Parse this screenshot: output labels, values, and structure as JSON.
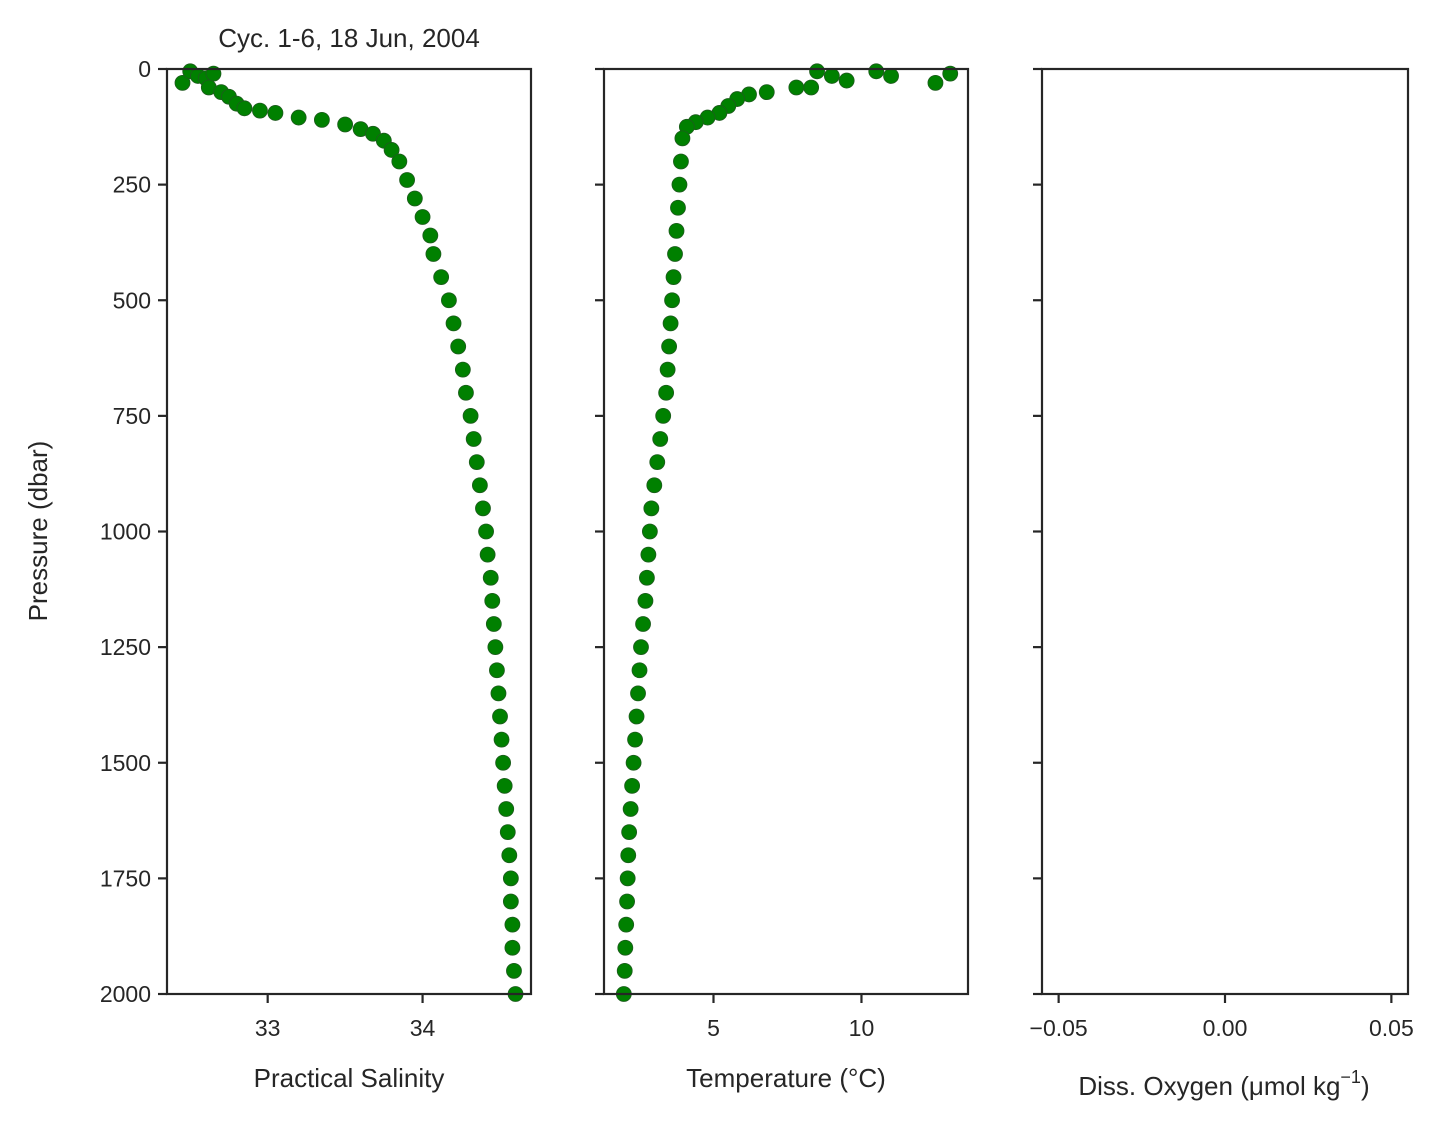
{
  "chart_data": [
    {
      "type": "scatter",
      "title": "Cyc. 1-6, 18 Jun, 2004",
      "xlabel": "Practical Salinity",
      "ylabel": "Pressure (dbar)",
      "xlim": [
        32.35,
        34.7
      ],
      "ylim": [
        2000,
        0
      ],
      "y_inverted": true,
      "xticks": [
        33,
        34
      ],
      "xtick_labels": [
        "33",
        "34"
      ],
      "yticks": [
        0,
        250,
        500,
        750,
        1000,
        1250,
        1500,
        1750,
        2000
      ],
      "ytick_labels": [
        "0",
        "250",
        "500",
        "750",
        "1000",
        "1250",
        "1500",
        "1750",
        "2000"
      ],
      "color": "#008000",
      "grid": false,
      "points": [
        [
          32.45,
          30
        ],
        [
          32.5,
          5
        ],
        [
          32.55,
          15
        ],
        [
          32.6,
          20
        ],
        [
          32.65,
          10
        ],
        [
          32.62,
          40
        ],
        [
          32.7,
          50
        ],
        [
          32.75,
          60
        ],
        [
          32.8,
          75
        ],
        [
          32.85,
          85
        ],
        [
          32.95,
          90
        ],
        [
          33.05,
          95
        ],
        [
          33.2,
          105
        ],
        [
          33.35,
          110
        ],
        [
          33.5,
          120
        ],
        [
          33.6,
          130
        ],
        [
          33.68,
          140
        ],
        [
          33.75,
          155
        ],
        [
          33.8,
          175
        ],
        [
          33.85,
          200
        ],
        [
          33.9,
          240
        ],
        [
          33.95,
          280
        ],
        [
          34.0,
          320
        ],
        [
          34.05,
          360
        ],
        [
          34.07,
          400
        ],
        [
          34.12,
          450
        ],
        [
          34.17,
          500
        ],
        [
          34.2,
          550
        ],
        [
          34.23,
          600
        ],
        [
          34.26,
          650
        ],
        [
          34.28,
          700
        ],
        [
          34.31,
          750
        ],
        [
          34.33,
          800
        ],
        [
          34.35,
          850
        ],
        [
          34.37,
          900
        ],
        [
          34.39,
          950
        ],
        [
          34.41,
          1000
        ],
        [
          34.42,
          1050
        ],
        [
          34.44,
          1100
        ],
        [
          34.45,
          1150
        ],
        [
          34.46,
          1200
        ],
        [
          34.47,
          1250
        ],
        [
          34.48,
          1300
        ],
        [
          34.49,
          1350
        ],
        [
          34.5,
          1400
        ],
        [
          34.51,
          1450
        ],
        [
          34.52,
          1500
        ],
        [
          34.53,
          1550
        ],
        [
          34.54,
          1600
        ],
        [
          34.55,
          1650
        ],
        [
          34.56,
          1700
        ],
        [
          34.57,
          1750
        ],
        [
          34.57,
          1800
        ],
        [
          34.58,
          1850
        ],
        [
          34.58,
          1900
        ],
        [
          34.59,
          1950
        ],
        [
          34.6,
          2000
        ]
      ]
    },
    {
      "type": "scatter",
      "xlabel": "Temperature (°C)",
      "xlim": [
        1.3,
        13.6
      ],
      "ylim": [
        2000,
        0
      ],
      "y_inverted": true,
      "xticks": [
        5,
        10
      ],
      "xtick_labels": [
        "5",
        "10"
      ],
      "color": "#008000",
      "grid": false,
      "points": [
        [
          13.0,
          10
        ],
        [
          12.5,
          30
        ],
        [
          11.0,
          15
        ],
        [
          10.5,
          5
        ],
        [
          9.5,
          25
        ],
        [
          9.0,
          15
        ],
        [
          8.5,
          5
        ],
        [
          8.3,
          40
        ],
        [
          7.8,
          40
        ],
        [
          6.8,
          50
        ],
        [
          6.2,
          55
        ],
        [
          5.8,
          65
        ],
        [
          5.5,
          80
        ],
        [
          5.2,
          95
        ],
        [
          4.8,
          105
        ],
        [
          4.4,
          115
        ],
        [
          4.1,
          125
        ],
        [
          3.95,
          150
        ],
        [
          3.9,
          200
        ],
        [
          3.85,
          250
        ],
        [
          3.8,
          300
        ],
        [
          3.75,
          350
        ],
        [
          3.7,
          400
        ],
        [
          3.65,
          450
        ],
        [
          3.6,
          500
        ],
        [
          3.55,
          550
        ],
        [
          3.5,
          600
        ],
        [
          3.45,
          650
        ],
        [
          3.4,
          700
        ],
        [
          3.3,
          750
        ],
        [
          3.2,
          800
        ],
        [
          3.1,
          850
        ],
        [
          3.0,
          900
        ],
        [
          2.9,
          950
        ],
        [
          2.85,
          1000
        ],
        [
          2.8,
          1050
        ],
        [
          2.75,
          1100
        ],
        [
          2.7,
          1150
        ],
        [
          2.62,
          1200
        ],
        [
          2.55,
          1250
        ],
        [
          2.5,
          1300
        ],
        [
          2.45,
          1350
        ],
        [
          2.4,
          1400
        ],
        [
          2.35,
          1450
        ],
        [
          2.3,
          1500
        ],
        [
          2.25,
          1550
        ],
        [
          2.2,
          1600
        ],
        [
          2.15,
          1650
        ],
        [
          2.12,
          1700
        ],
        [
          2.1,
          1750
        ],
        [
          2.08,
          1800
        ],
        [
          2.05,
          1850
        ],
        [
          2.02,
          1900
        ],
        [
          2.0,
          1950
        ],
        [
          1.97,
          2000
        ]
      ]
    },
    {
      "type": "scatter",
      "xlabel": "Diss. Oxygen (μmol kg",
      "xlabel_superscript": "−1",
      "xlabel_suffix": ")",
      "xlim": [
        -0.055,
        0.055
      ],
      "ylim": [
        2000,
        0
      ],
      "y_inverted": true,
      "xticks": [
        -0.05,
        0.0,
        0.05
      ],
      "xtick_labels": [
        "−0.05",
        "0.00",
        "0.05"
      ],
      "points": []
    }
  ]
}
